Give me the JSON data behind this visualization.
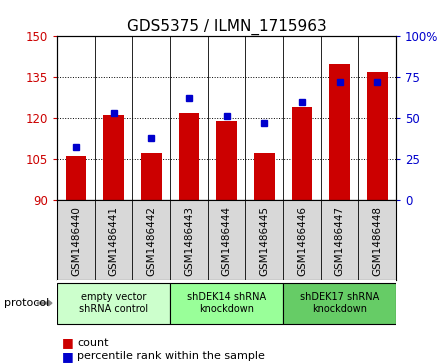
{
  "title": "GDS5375 / ILMN_1715963",
  "samples": [
    "GSM1486440",
    "GSM1486441",
    "GSM1486442",
    "GSM1486443",
    "GSM1486444",
    "GSM1486445",
    "GSM1486446",
    "GSM1486447",
    "GSM1486448"
  ],
  "counts": [
    106,
    121,
    107,
    122,
    119,
    107,
    124,
    140,
    137
  ],
  "percentiles": [
    32,
    53,
    38,
    62,
    51,
    47,
    60,
    72,
    72
  ],
  "ylim_left": [
    90,
    150
  ],
  "ylim_right": [
    0,
    100
  ],
  "yticks_left": [
    90,
    105,
    120,
    135,
    150
  ],
  "yticks_right": [
    0,
    25,
    50,
    75,
    100
  ],
  "bar_color": "#cc0000",
  "dot_color": "#0000cc",
  "protocol_groups": [
    {
      "label": "empty vector\nshRNA control",
      "indices": [
        0,
        1,
        2
      ],
      "color": "#ccffcc"
    },
    {
      "label": "shDEK14 shRNA\nknockdown",
      "indices": [
        3,
        4,
        5
      ],
      "color": "#99ff99"
    },
    {
      "label": "shDEK17 shRNA\nknockdown",
      "indices": [
        6,
        7,
        8
      ],
      "color": "#66cc66"
    }
  ],
  "legend_count_label": "count",
  "legend_percentile_label": "percentile rank within the sample",
  "protocol_label": "protocol",
  "bar_bottom": 90,
  "title_fontsize": 11
}
